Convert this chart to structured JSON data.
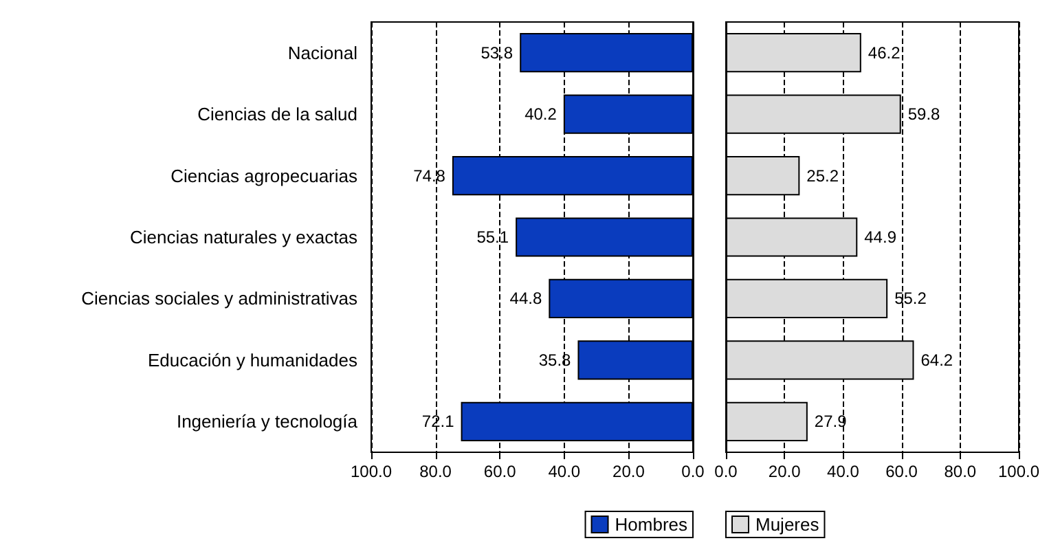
{
  "chart_data": [
    {
      "type": "bar",
      "orientation": "horizontal",
      "categories": [
        "Nacional",
        "Ciencias de la salud",
        "Ciencias agropecuarias",
        "Ciencias naturales y exactas",
        "Ciencias sociales y administrativas",
        "Educación y humanidades",
        "Ingeniería y tecnología"
      ],
      "series": [
        {
          "name": "Hombres",
          "color": "#0a3cbe",
          "values": [
            53.8,
            40.2,
            74.8,
            55.1,
            44.8,
            35.8,
            72.1
          ]
        }
      ],
      "xlim": [
        100,
        0
      ],
      "xticks": [
        {
          "value": 100,
          "label": "100.0"
        },
        {
          "value": 80,
          "label": "80.0"
        },
        {
          "value": 60,
          "label": "60.0"
        },
        {
          "value": 40,
          "label": "40.0"
        },
        {
          "value": 20,
          "label": "20.0"
        },
        {
          "value": 0,
          "label": "0.0"
        }
      ],
      "data_labels": true,
      "grid": "x",
      "legend": "bottom"
    },
    {
      "type": "bar",
      "orientation": "horizontal",
      "categories": [
        null,
        null,
        null,
        null,
        null,
        null,
        null
      ],
      "series": [
        {
          "name": "Mujeres",
          "color": "#dcdcdc",
          "values": [
            46.2,
            59.8,
            25.2,
            44.9,
            55.2,
            64.2,
            27.9
          ]
        }
      ],
      "xlim": [
        0,
        100
      ],
      "xticks": [
        {
          "value": 0,
          "label": "0.0"
        },
        {
          "value": 20,
          "label": "20.0"
        },
        {
          "value": 40,
          "label": "40.0"
        },
        {
          "value": 60,
          "label": "60.0"
        },
        {
          "value": 80,
          "label": "80.0"
        },
        {
          "value": 100,
          "label": "100.0"
        }
      ],
      "data_labels": true,
      "grid": "x",
      "legend": "bottom",
      "tick_labels": "x"
    }
  ]
}
